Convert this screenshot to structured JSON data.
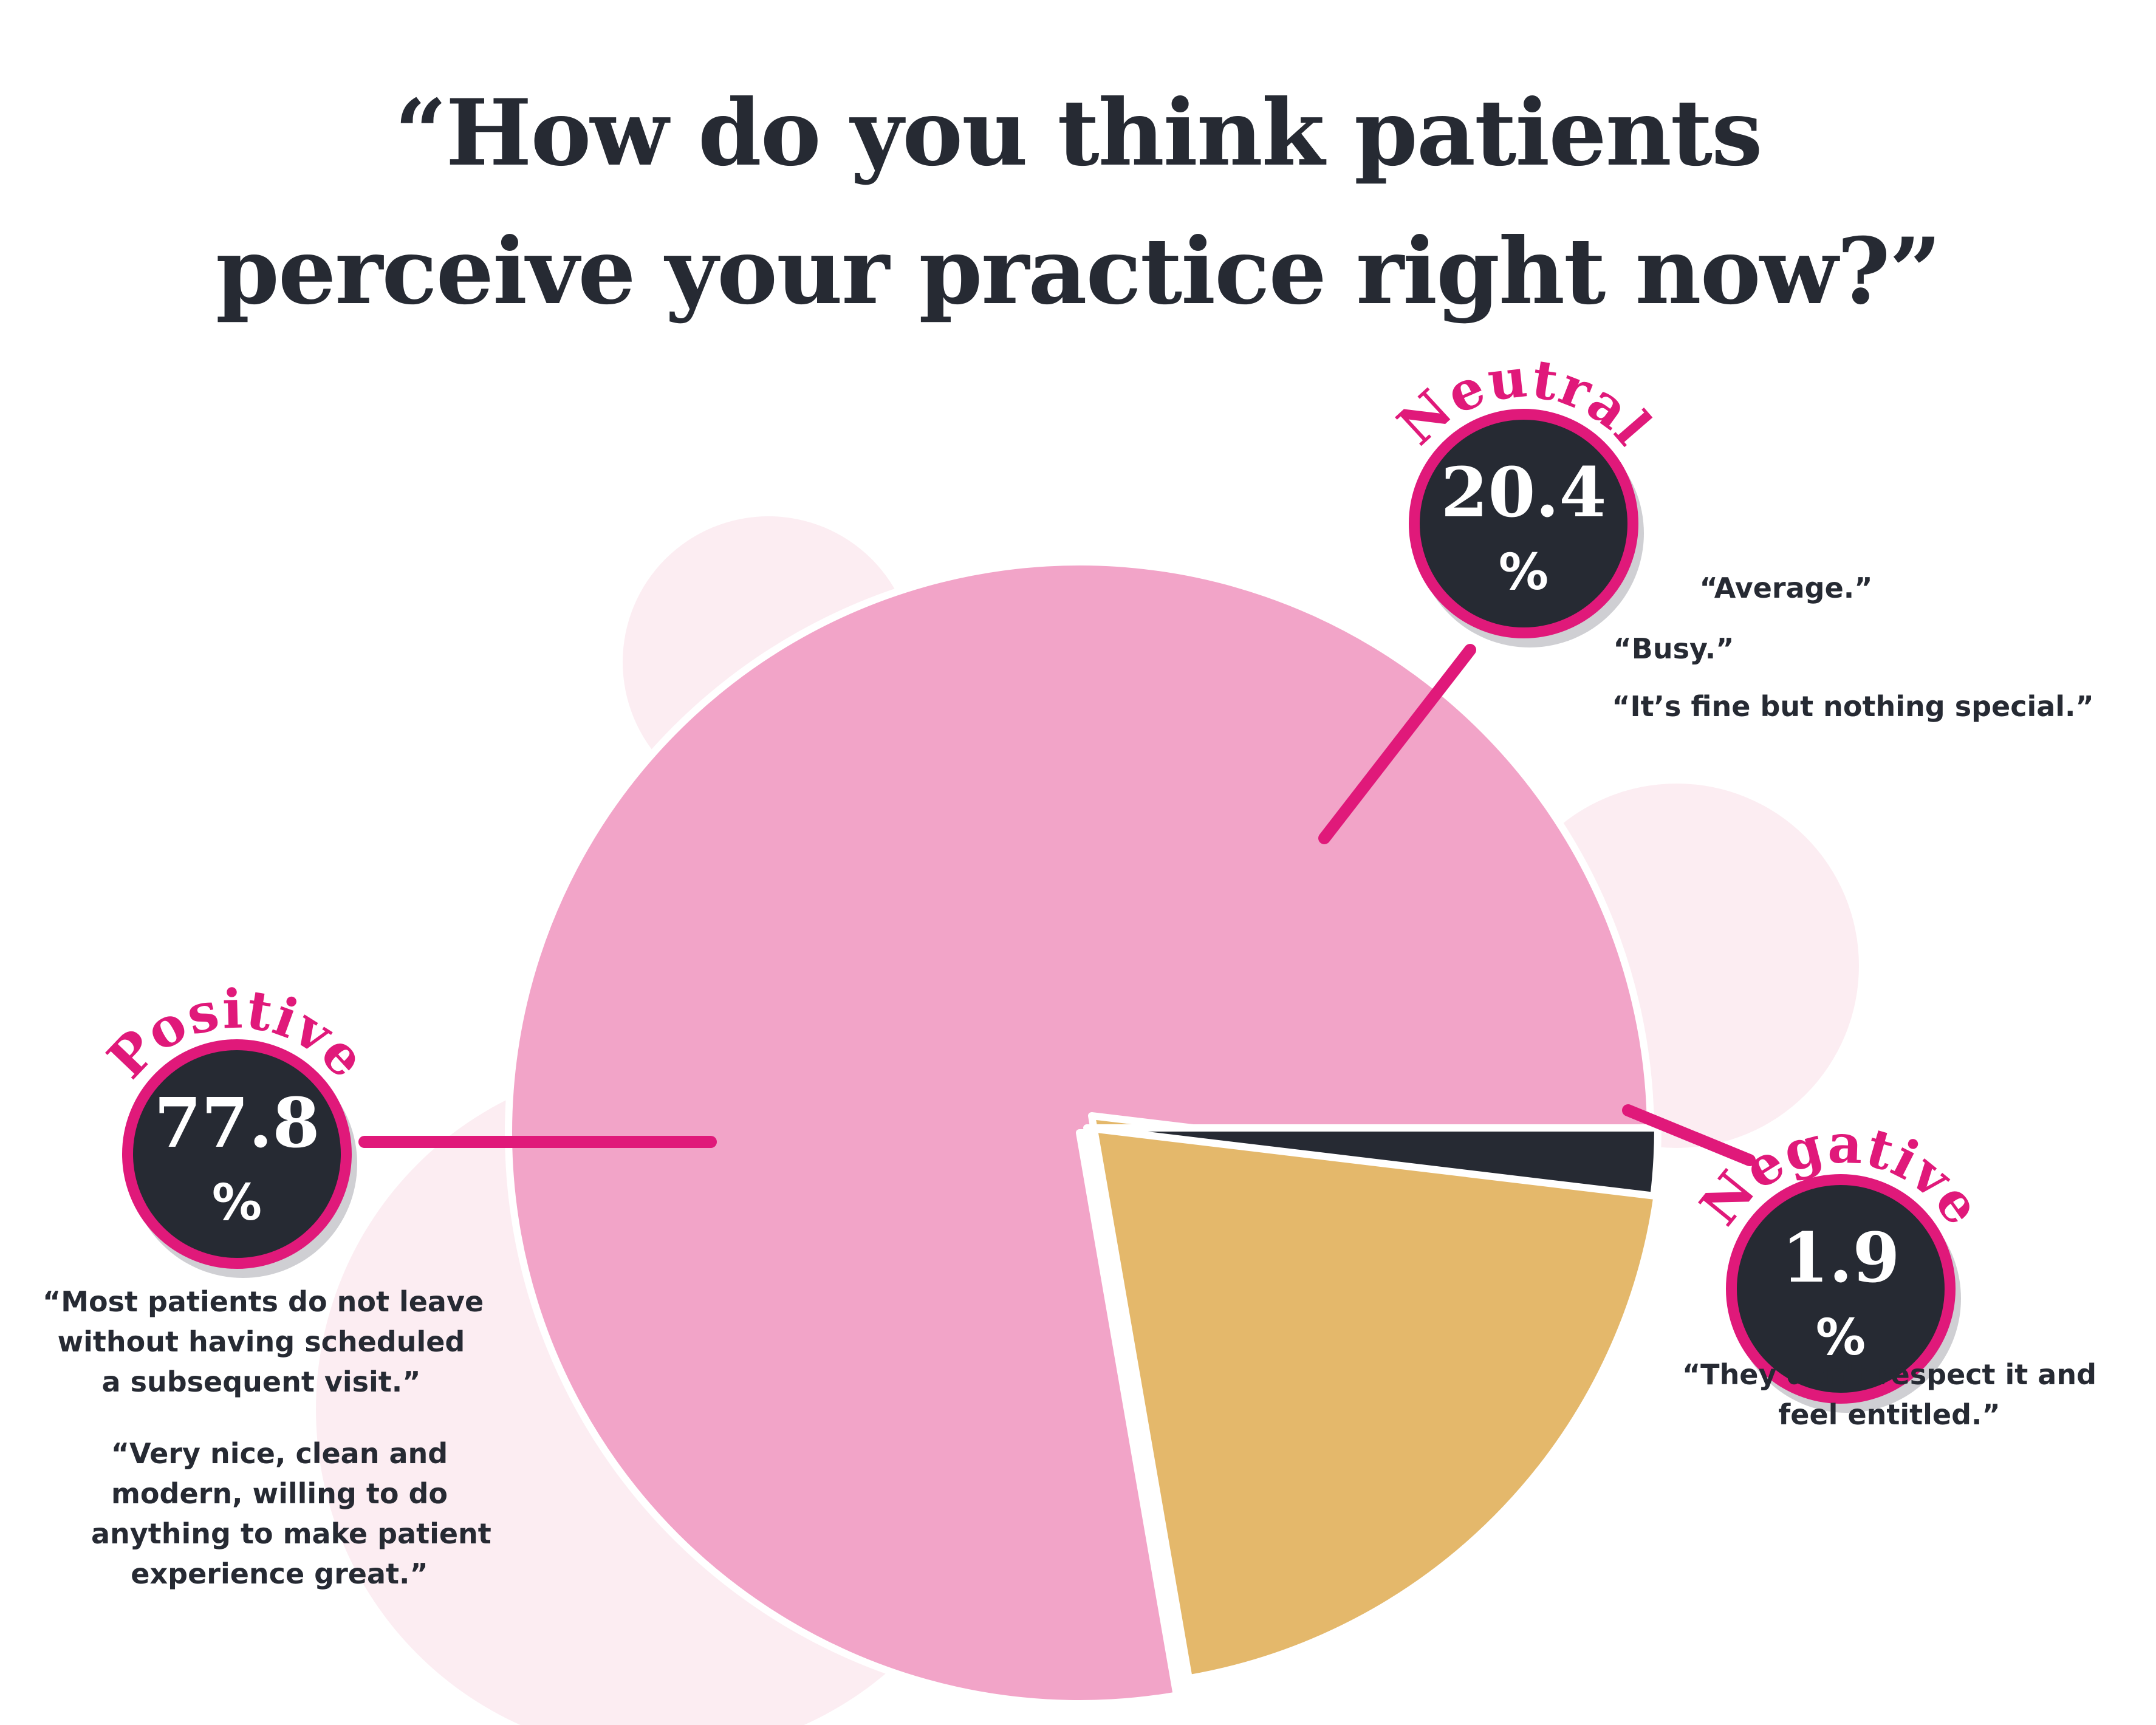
{
  "title": {
    "line1": "“How do you think patients",
    "line2": "perceive your practice right now?”"
  },
  "colors": {
    "positive": "#f2a4c8",
    "neutral": "#e4b86b",
    "negative": "#262a33",
    "accent": "#e0197a",
    "badge": "#262a33",
    "halo": "#fcedf2",
    "text": "#262a33"
  },
  "chart_data": {
    "type": "pie",
    "title": "“How do you think patients perceive your practice right now?”",
    "slices": [
      {
        "label": "Positive",
        "value": 77.8,
        "unit": "%"
      },
      {
        "label": "Neutral",
        "value": 20.4,
        "unit": "%"
      },
      {
        "label": "Negative",
        "value": 1.9,
        "unit": "%"
      }
    ]
  },
  "quotes": {
    "positive": [
      [
        "“Most patients do not leave",
        "without having scheduled",
        "a subsequent visit.”"
      ],
      [
        "“Very nice, clean and",
        "modern, willing to do",
        "anything to make patient",
        "experience great.”"
      ]
    ],
    "neutral": [
      "“Average.”",
      "“Busy.”",
      "“It’s fine but nothing special.”"
    ],
    "negative": [
      "“They don't respect it and",
      "feel entitled.”"
    ]
  }
}
